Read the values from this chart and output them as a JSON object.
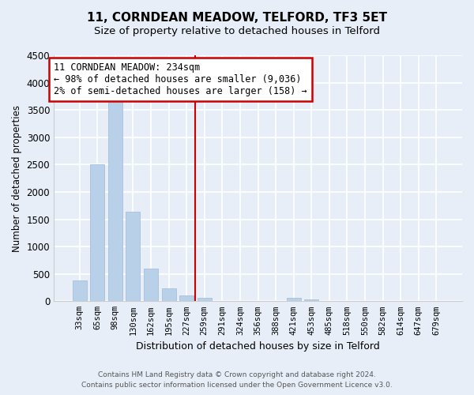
{
  "title": "11, CORNDEAN MEADOW, TELFORD, TF3 5ET",
  "subtitle": "Size of property relative to detached houses in Telford",
  "xlabel": "Distribution of detached houses by size in Telford",
  "ylabel": "Number of detached properties",
  "bar_labels": [
    "33sqm",
    "65sqm",
    "98sqm",
    "130sqm",
    "162sqm",
    "195sqm",
    "227sqm",
    "259sqm",
    "291sqm",
    "324sqm",
    "356sqm",
    "388sqm",
    "421sqm",
    "453sqm",
    "485sqm",
    "518sqm",
    "550sqm",
    "582sqm",
    "614sqm",
    "647sqm",
    "679sqm"
  ],
  "bar_values": [
    380,
    2500,
    3720,
    1640,
    600,
    240,
    100,
    60,
    0,
    0,
    0,
    0,
    60,
    30,
    0,
    0,
    0,
    0,
    0,
    0,
    0
  ],
  "bar_color": "#b8d0e8",
  "vline_x": 6.5,
  "vline_color": "#cc0000",
  "ylim": [
    0,
    4500
  ],
  "yticks": [
    0,
    500,
    1000,
    1500,
    2000,
    2500,
    3000,
    3500,
    4000,
    4500
  ],
  "annotation_title": "11 CORNDEAN MEADOW: 234sqm",
  "annotation_line1": "← 98% of detached houses are smaller (9,036)",
  "annotation_line2": "2% of semi-detached houses are larger (158) →",
  "annotation_box_color": "#ffffff",
  "annotation_box_edge": "#cc0000",
  "footer1": "Contains HM Land Registry data © Crown copyright and database right 2024.",
  "footer2": "Contains public sector information licensed under the Open Government Licence v3.0.",
  "bg_color": "#e8eef8"
}
